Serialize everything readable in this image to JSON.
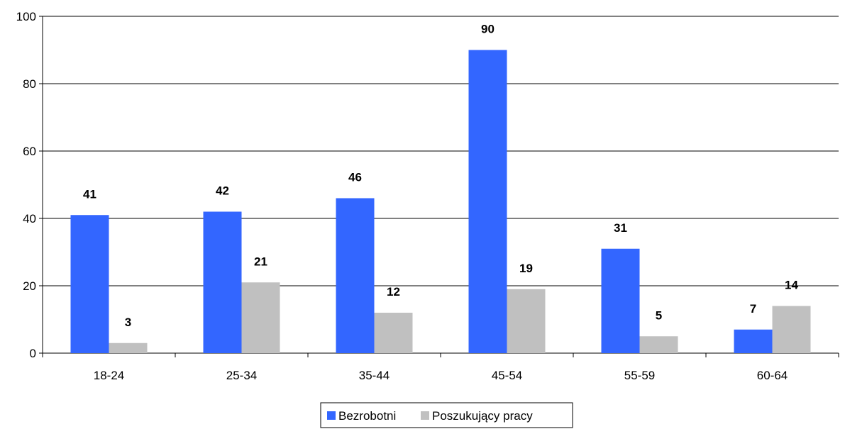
{
  "chart_data": {
    "type": "bar",
    "categories": [
      "18-24",
      "25-34",
      "35-44",
      "45-54",
      "55-59",
      "60-64"
    ],
    "series": [
      {
        "name": "Bezrobotni",
        "values": [
          41,
          42,
          46,
          90,
          31,
          7
        ],
        "color": "#3366FF"
      },
      {
        "name": "Poszukujący pracy",
        "values": [
          3,
          21,
          12,
          19,
          5,
          14
        ],
        "color": "#C0C0C0"
      }
    ],
    "title": "",
    "xlabel": "",
    "ylabel": "",
    "ylim": [
      0,
      100
    ],
    "yticks": [
      0,
      20,
      40,
      60,
      80,
      100
    ],
    "grid": true,
    "legend_position": "bottom"
  }
}
